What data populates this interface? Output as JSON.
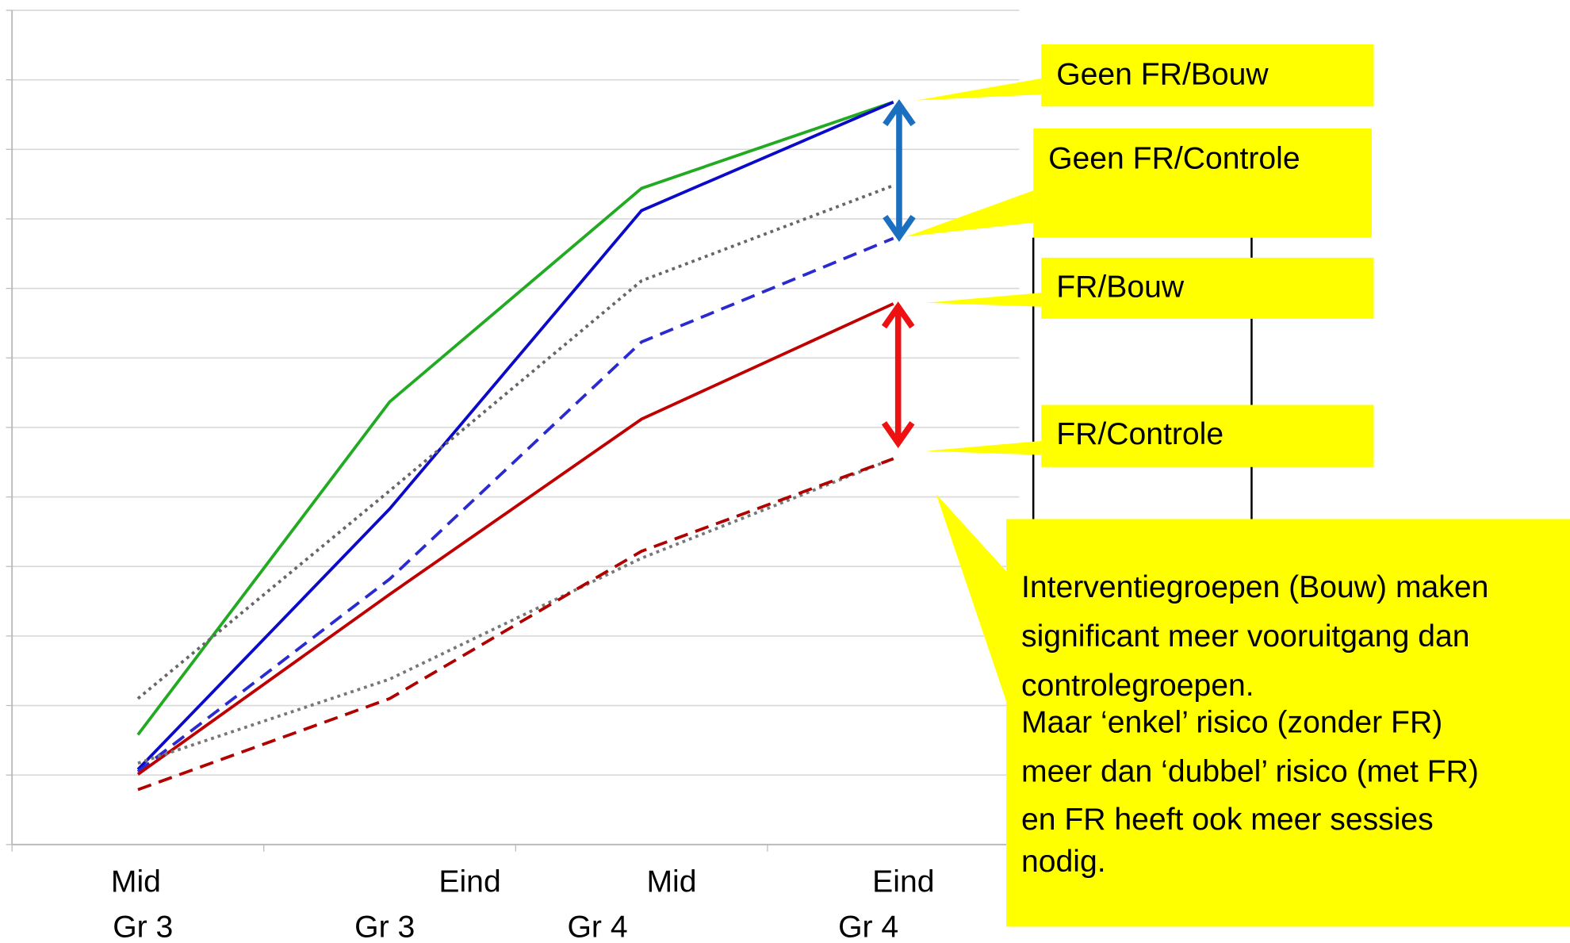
{
  "chart_data": {
    "type": "line",
    "categories": [
      [
        "Mid",
        "Gr 3"
      ],
      [
        "Eind",
        "Gr 3"
      ],
      [
        "Mid",
        "Gr 4"
      ],
      [
        "Eind",
        "Gr 4"
      ]
    ],
    "ylim": [
      0,
      12
    ],
    "yticks": [
      0,
      1,
      2,
      3,
      4,
      5,
      6,
      7,
      8,
      9,
      10,
      11,
      12
    ],
    "grid": true,
    "series": [
      {
        "color": "#22aa22",
        "style": "solid",
        "values": [
          1.58,
          6.37,
          9.44,
          10.68
        ]
      },
      {
        "name": "Geen FR/Bouw",
        "color": "#0a0ac8",
        "style": "solid",
        "values": [
          1.08,
          4.83,
          9.12,
          10.68
        ]
      },
      {
        "color": "#666666",
        "style": "dotted",
        "values": [
          2.1,
          5.09,
          8.11,
          9.48
        ]
      },
      {
        "name": "Geen FR/Controle",
        "color": "#2a2ad0",
        "style": "dashed",
        "values": [
          1.05,
          3.82,
          7.23,
          8.72
        ]
      },
      {
        "name": "FR/Bouw",
        "color": "#c00000",
        "style": "solid",
        "values": [
          1.01,
          3.6,
          6.12,
          7.78
        ]
      },
      {
        "color": "#777777",
        "style": "dotted",
        "values": [
          1.17,
          2.38,
          4.12,
          5.55
        ]
      },
      {
        "name": "FR/Controle",
        "color": "#b00000",
        "style": "dashed",
        "values": [
          0.79,
          2.1,
          4.22,
          5.55
        ]
      }
    ],
    "annotation": [
      "Interventiegroepen (Bouw) maken",
      "significant meer vooruitgang dan",
      "controlegroepen.",
      "Maar ‘enkel’ risico (zonder FR)",
      "meer dan ‘dubbel’ risico (met FR)",
      "en FR heeft ook meer sessies",
      "nodig."
    ]
  }
}
